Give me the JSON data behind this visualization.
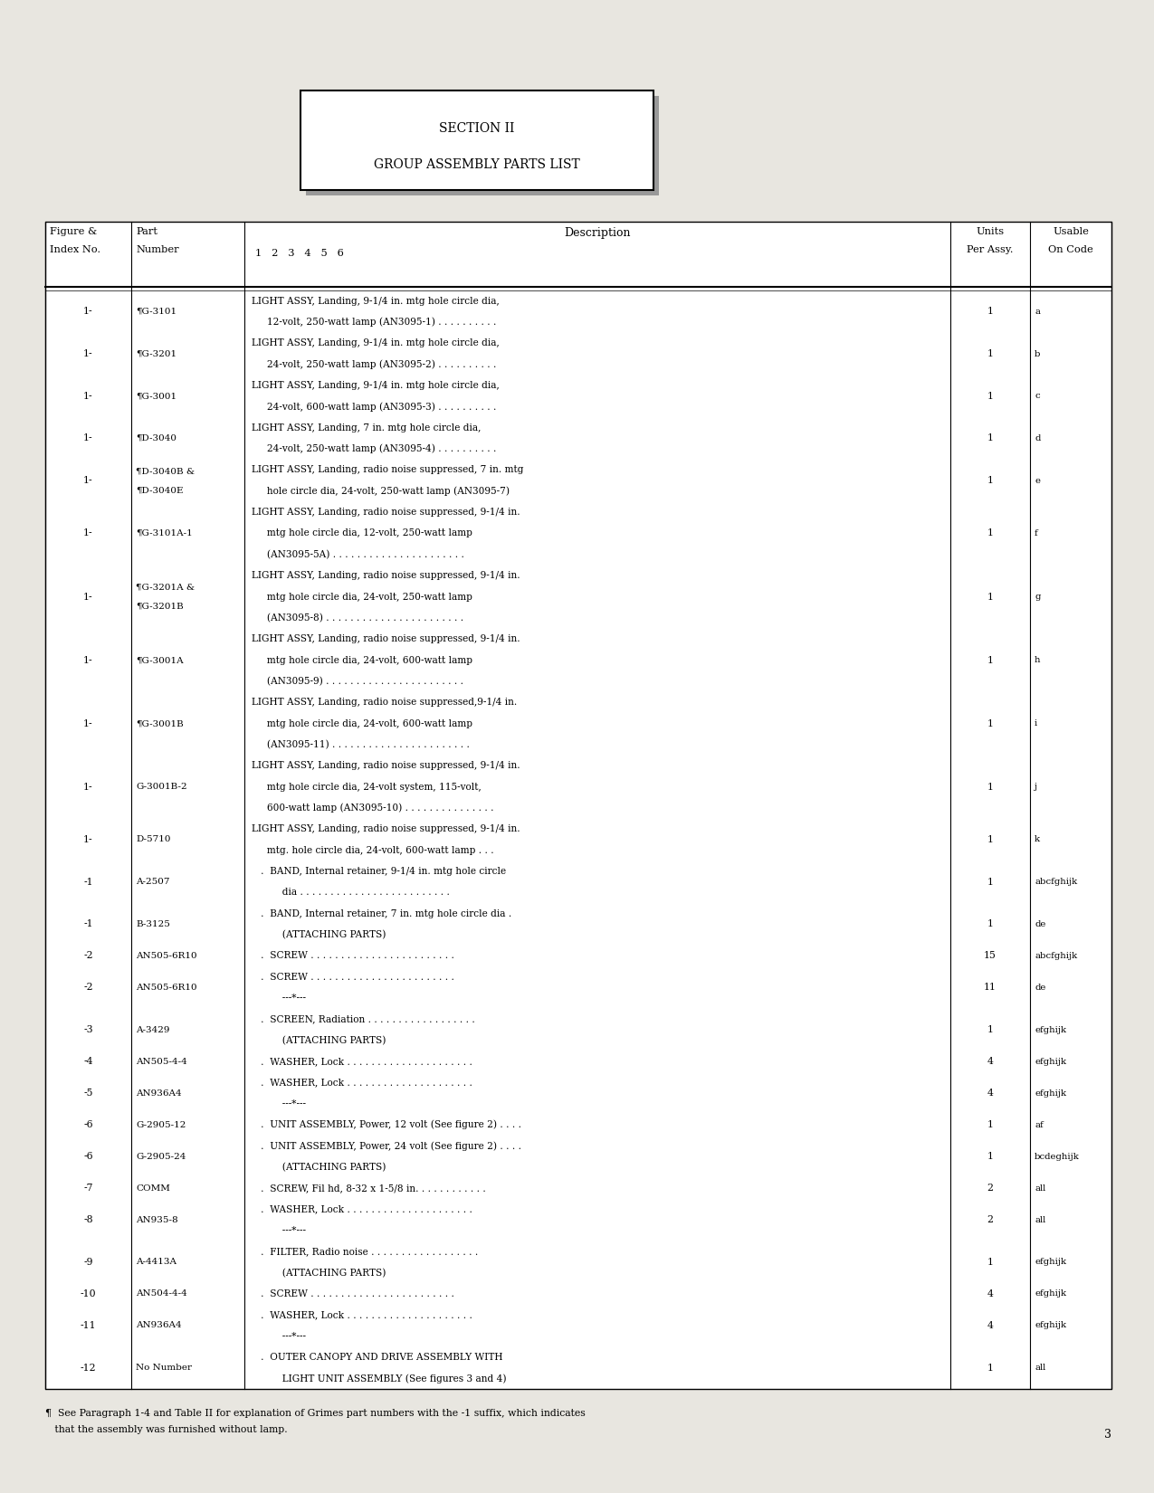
{
  "page_bg": "#e8e6e0",
  "title_lines": [
    "SECTION II",
    "GROUP ASSEMBLY PARTS LIST"
  ],
  "rows": [
    {
      "fig": "1-",
      "part": "¶G-3101",
      "desc1": "LIGHT ASSY, Landing, 9-1/4 in. mtg hole circle dia,",
      "desc2": "     12-volt, 250-watt lamp (AN3095-1) . . . . . . . . . .",
      "desc3": "",
      "units": "1",
      "usable": "a"
    },
    {
      "fig": "1-",
      "part": "¶G-3201",
      "desc1": "LIGHT ASSY, Landing, 9-1/4 in. mtg hole circle dia,",
      "desc2": "     24-volt, 250-watt lamp (AN3095-2) . . . . . . . . . .",
      "desc3": "",
      "units": "1",
      "usable": "b"
    },
    {
      "fig": "1-",
      "part": "¶G-3001",
      "desc1": "LIGHT ASSY, Landing, 9-1/4 in. mtg hole circle dia,",
      "desc2": "     24-volt, 600-watt lamp (AN3095-3) . . . . . . . . . .",
      "desc3": "",
      "units": "1",
      "usable": "c"
    },
    {
      "fig": "1-",
      "part": "¶D-3040",
      "desc1": "LIGHT ASSY, Landing, 7 in. mtg hole circle dia,",
      "desc2": "     24-volt, 250-watt lamp (AN3095-4) . . . . . . . . . .",
      "desc3": "",
      "units": "1",
      "usable": "d"
    },
    {
      "fig": "1-",
      "part": "¶D-3040B &",
      "desc1": "LIGHT ASSY, Landing, radio noise suppressed, 7 in. mtg",
      "desc2": "     hole circle dia, 24-volt, 250-watt lamp (AN3095-7)",
      "desc3": "",
      "units": "1",
      "usable": "e",
      "part2": "¶D-3040E"
    },
    {
      "fig": "1-",
      "part": "¶G-3101A-1",
      "desc1": "LIGHT ASSY, Landing, radio noise suppressed, 9-1/4 in.",
      "desc2": "     mtg hole circle dia, 12-volt, 250-watt lamp",
      "desc3": "     (AN3095-5A) . . . . . . . . . . . . . . . . . . . . . .",
      "units": "1",
      "usable": "f"
    },
    {
      "fig": "1-",
      "part": "¶G-3201A &",
      "desc1": "LIGHT ASSY, Landing, radio noise suppressed, 9-1/4 in.",
      "desc2": "     mtg hole circle dia, 24-volt, 250-watt lamp",
      "desc3": "     (AN3095-8) . . . . . . . . . . . . . . . . . . . . . . .",
      "units": "1",
      "usable": "g",
      "part2": "¶G-3201B"
    },
    {
      "fig": "1-",
      "part": "¶G-3001A",
      "desc1": "LIGHT ASSY, Landing, radio noise suppressed, 9-1/4 in.",
      "desc2": "     mtg hole circle dia, 24-volt, 600-watt lamp",
      "desc3": "     (AN3095-9) . . . . . . . . . . . . . . . . . . . . . . .",
      "units": "1",
      "usable": "h"
    },
    {
      "fig": "1-",
      "part": "¶G-3001B",
      "desc1": "LIGHT ASSY, Landing, radio noise suppressed,9-1/4 in.",
      "desc2": "     mtg hole circle dia, 24-volt, 600-watt lamp",
      "desc3": "     (AN3095-11) . . . . . . . . . . . . . . . . . . . . . . .",
      "units": "1",
      "usable": "i"
    },
    {
      "fig": "1-",
      "part": "G-3001B-2",
      "desc1": "LIGHT ASSY, Landing, radio noise suppressed, 9-1/4 in.",
      "desc2": "     mtg hole circle dia, 24-volt system, 115-volt,",
      "desc3": "     600-watt lamp (AN3095-10) . . . . . . . . . . . . . . .",
      "units": "1",
      "usable": "j"
    },
    {
      "fig": "1-",
      "part": "D-5710",
      "desc1": "LIGHT ASSY, Landing, radio noise suppressed, 9-1/4 in.",
      "desc2": "     mtg. hole circle dia, 24-volt, 600-watt lamp . . .",
      "desc3": "",
      "units": "1",
      "usable": "k"
    },
    {
      "fig": "-1",
      "part": "A-2507",
      "desc1": "   .  BAND, Internal retainer, 9-1/4 in. mtg hole circle",
      "desc2": "          dia . . . . . . . . . . . . . . . . . . . . . . . . .",
      "desc3": "",
      "units": "1",
      "usable": "abcfghijk"
    },
    {
      "fig": "-1",
      "part": "B-3125",
      "desc1": "   .  BAND, Internal retainer, 7 in. mtg hole circle dia .",
      "desc2": "          (ATTACHING PARTS)",
      "desc3": "",
      "units": "1",
      "usable": "de"
    },
    {
      "fig": "-2",
      "part": "AN505-6R10",
      "desc1": "   .  SCREW . . . . . . . . . . . . . . . . . . . . . . . .",
      "desc2": "",
      "desc3": "",
      "units": "15",
      "usable": "abcfghijk"
    },
    {
      "fig": "-2",
      "part": "AN505-6R10",
      "desc1": "   .  SCREW . . . . . . . . . . . . . . . . . . . . . . . .",
      "desc2": "          ---*---",
      "desc3": "",
      "units": "11",
      "usable": "de"
    },
    {
      "fig": "-3",
      "part": "A-3429",
      "desc1": "   .  SCREEN, Radiation . . . . . . . . . . . . . . . . . .",
      "desc2": "          (ATTACHING PARTS)",
      "desc3": "",
      "units": "1",
      "usable": "efghijk"
    },
    {
      "fig": "-4",
      "part": "AN505-4-4",
      "desc1": "   .  WASHER, Lock . . . . . . . . . . . . . . . . . . . . .",
      "desc2": "",
      "desc3": "",
      "units": "4",
      "usable": "efghijk"
    },
    {
      "fig": "-5",
      "part": "AN936A4",
      "desc1": "   .  WASHER, Lock . . . . . . . . . . . . . . . . . . . . .",
      "desc2": "          ---*---",
      "desc3": "",
      "units": "4",
      "usable": "efghijk"
    },
    {
      "fig": "-6",
      "part": "G-2905-12",
      "desc1": "   .  UNIT ASSEMBLY, Power, 12 volt (See figure 2) . . . .",
      "desc2": "",
      "desc3": "",
      "units": "1",
      "usable": "af"
    },
    {
      "fig": "-6",
      "part": "G-2905-24",
      "desc1": "   .  UNIT ASSEMBLY, Power, 24 volt (See figure 2) . . . .",
      "desc2": "          (ATTACHING PARTS)",
      "desc3": "",
      "units": "1",
      "usable": "bcdeghijk"
    },
    {
      "fig": "-7",
      "part": "COMM",
      "desc1": "   .  SCREW, Fil hd, 8-32 x 1-5/8 in. . . . . . . . . . . .",
      "desc2": "",
      "desc3": "",
      "units": "2",
      "usable": "all"
    },
    {
      "fig": "-8",
      "part": "AN935-8",
      "desc1": "   .  WASHER, Lock . . . . . . . . . . . . . . . . . . . . .",
      "desc2": "          ---*---",
      "desc3": "",
      "units": "2",
      "usable": "all"
    },
    {
      "fig": "-9",
      "part": "A-4413A",
      "desc1": "   .  FILTER, Radio noise . . . . . . . . . . . . . . . . . .",
      "desc2": "          (ATTACHING PARTS)",
      "desc3": "",
      "units": "1",
      "usable": "efghijk"
    },
    {
      "fig": "-10",
      "part": "AN504-4-4",
      "desc1": "   .  SCREW . . . . . . . . . . . . . . . . . . . . . . . .",
      "desc2": "",
      "desc3": "",
      "units": "4",
      "usable": "efghijk"
    },
    {
      "fig": "-11",
      "part": "AN936A4",
      "desc1": "   .  WASHER, Lock . . . . . . . . . . . . . . . . . . . . .",
      "desc2": "          ---*---",
      "desc3": "",
      "units": "4",
      "usable": "efghijk"
    },
    {
      "fig": "-12",
      "part": "No Number",
      "desc1": "   .  OUTER CANOPY AND DRIVE ASSEMBLY WITH",
      "desc2": "          LIGHT UNIT ASSEMBLY (See figures 3 and 4)",
      "desc3": "",
      "units": "1",
      "usable": "all"
    }
  ],
  "footnote1": "¶  See Paragraph 1-4 and Table II for explanation of Grimes part numbers with the -1 suffix, which indicates",
  "footnote2": "   that the assembly was furnished without lamp.",
  "page_num": "3"
}
